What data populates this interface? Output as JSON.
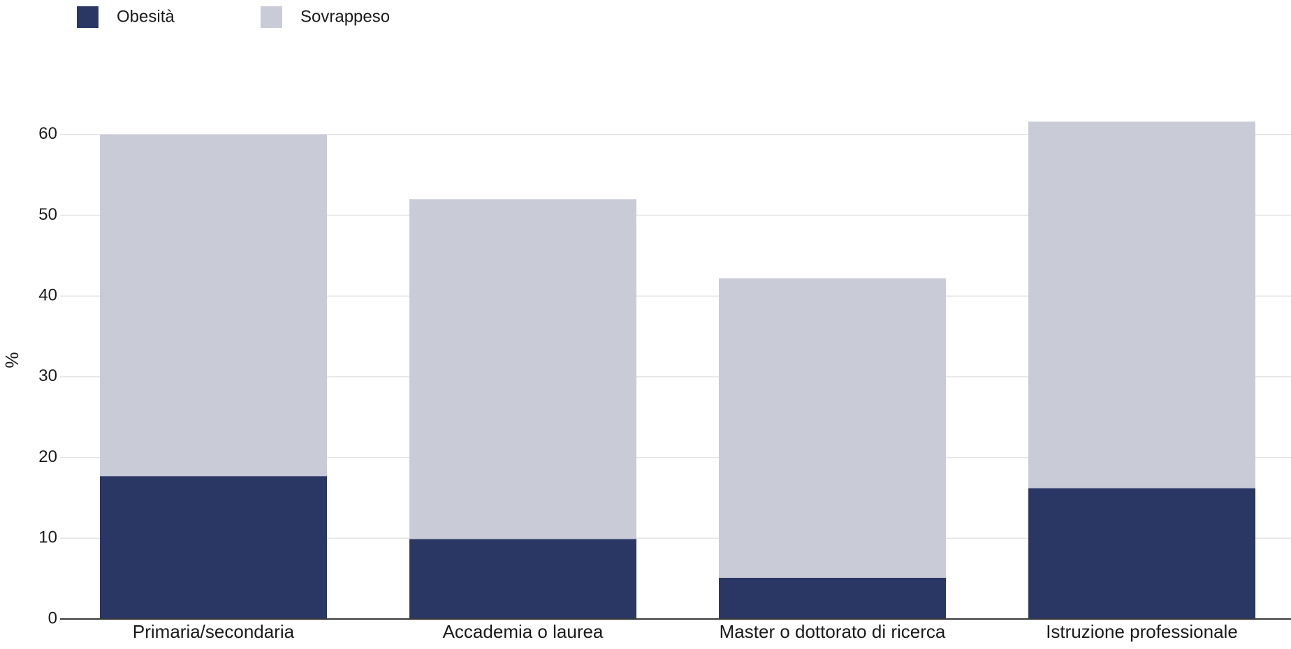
{
  "chart_data": {
    "type": "bar",
    "stacked": true,
    "categories": [
      "Primaria/secondaria",
      "Accademia o laurea",
      "Master o dottorato di ricerca",
      "Istruzione professionale"
    ],
    "series": [
      {
        "name": "Obesità",
        "values": [
          17.7,
          9.9,
          5.1,
          16.2
        ],
        "color": "#2a3764"
      },
      {
        "name": "Sovrappeso",
        "values": [
          42.3,
          42.1,
          37.1,
          45.4
        ],
        "color": "#c9cbd7"
      }
    ],
    "ylabel": "%",
    "xlabel": "",
    "ylim": [
      0,
      70
    ],
    "yticks": [
      0,
      10,
      20,
      30,
      40,
      50,
      60
    ],
    "grid": true,
    "legend_position": "top-left"
  }
}
